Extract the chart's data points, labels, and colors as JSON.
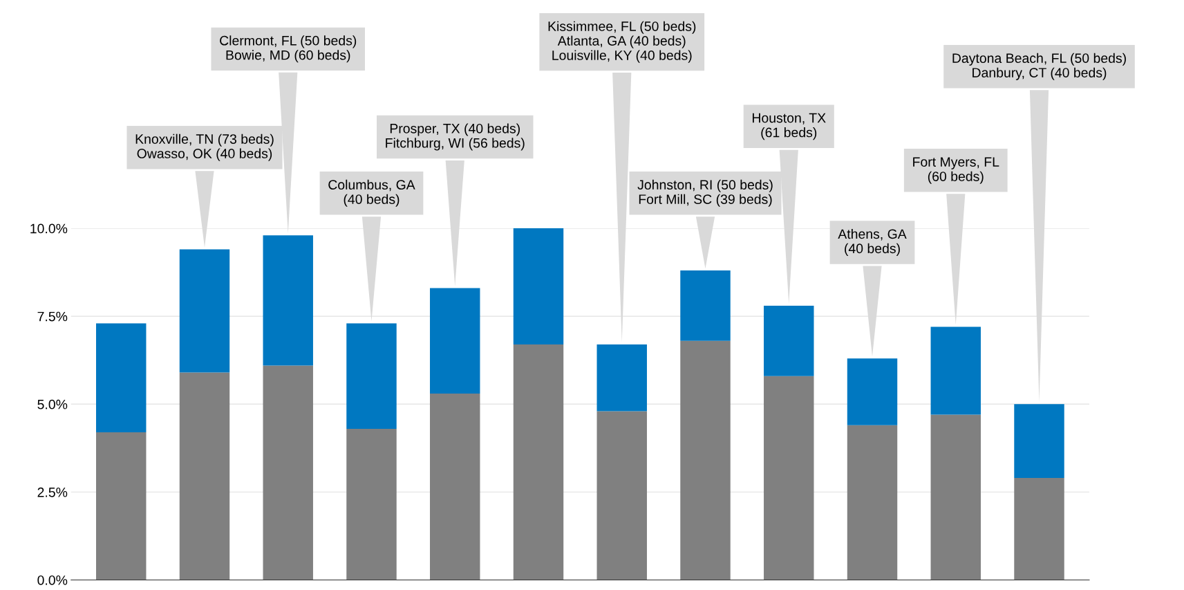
{
  "chart_data": {
    "type": "bar",
    "stacked": true,
    "categories": [
      null,
      null,
      null,
      null,
      null,
      null,
      null,
      null,
      null,
      null,
      null,
      null
    ],
    "series": [
      {
        "color": "#808080",
        "values": [
          4.2,
          5.9,
          6.1,
          4.3,
          5.3,
          6.7,
          4.8,
          6.8,
          5.8,
          4.4,
          4.7,
          2.9
        ]
      },
      {
        "color": "#0078c1",
        "values": [
          3.1,
          3.5,
          3.7,
          3.0,
          3.0,
          3.3,
          1.9,
          2.0,
          2.0,
          1.9,
          2.5,
          2.1
        ]
      }
    ],
    "annotations": [
      {
        "text": "Knoxville, TN (73 beds)\nOwasso, OK (40 beds)",
        "y": 9.4
      },
      {
        "text": "Clermont, FL (50 beds)\nBowie, MD (60 beds)",
        "y": 9.8
      },
      {
        "text": "Columbus, GA\n(40 beds)",
        "y": 7.3
      },
      {
        "text": "Prosper, TX (40 beds)\nFitchburg, WI (56 beds)",
        "y": 8.3
      },
      {
        "text": "Kissimmee, FL (50 beds)\nAtlanta, GA (40 beds)\nLouisville, KY (40 beds)",
        "y": 6.7
      },
      {
        "text": "Johnston, RI (50 beds)\nFort Mill, SC (39 beds)",
        "y": 8.8
      },
      {
        "text": "Houston, TX\n(61 beds)",
        "y": 7.8
      },
      {
        "text": "Athens, GA\n(40 beds)",
        "y": 6.3
      },
      {
        "text": "Fort Myers, FL\n(60 beds)",
        "y": 7.2
      },
      {
        "text": "Daytona Beach, FL (50 beds)\nDanbury, CT (40 beds)",
        "y": 5.0
      }
    ],
    "ylim": [
      0,
      10
    ],
    "yticks": [
      {
        "value": 0,
        "label": "0.0%"
      },
      {
        "value": 2.5,
        "label": "2.5%"
      },
      {
        "value": 5,
        "label": "5.0%"
      },
      {
        "value": 7.5,
        "label": "7.5%"
      },
      {
        "value": 10,
        "label": "10.0%"
      }
    ],
    "grid": "y",
    "legend": false
  }
}
